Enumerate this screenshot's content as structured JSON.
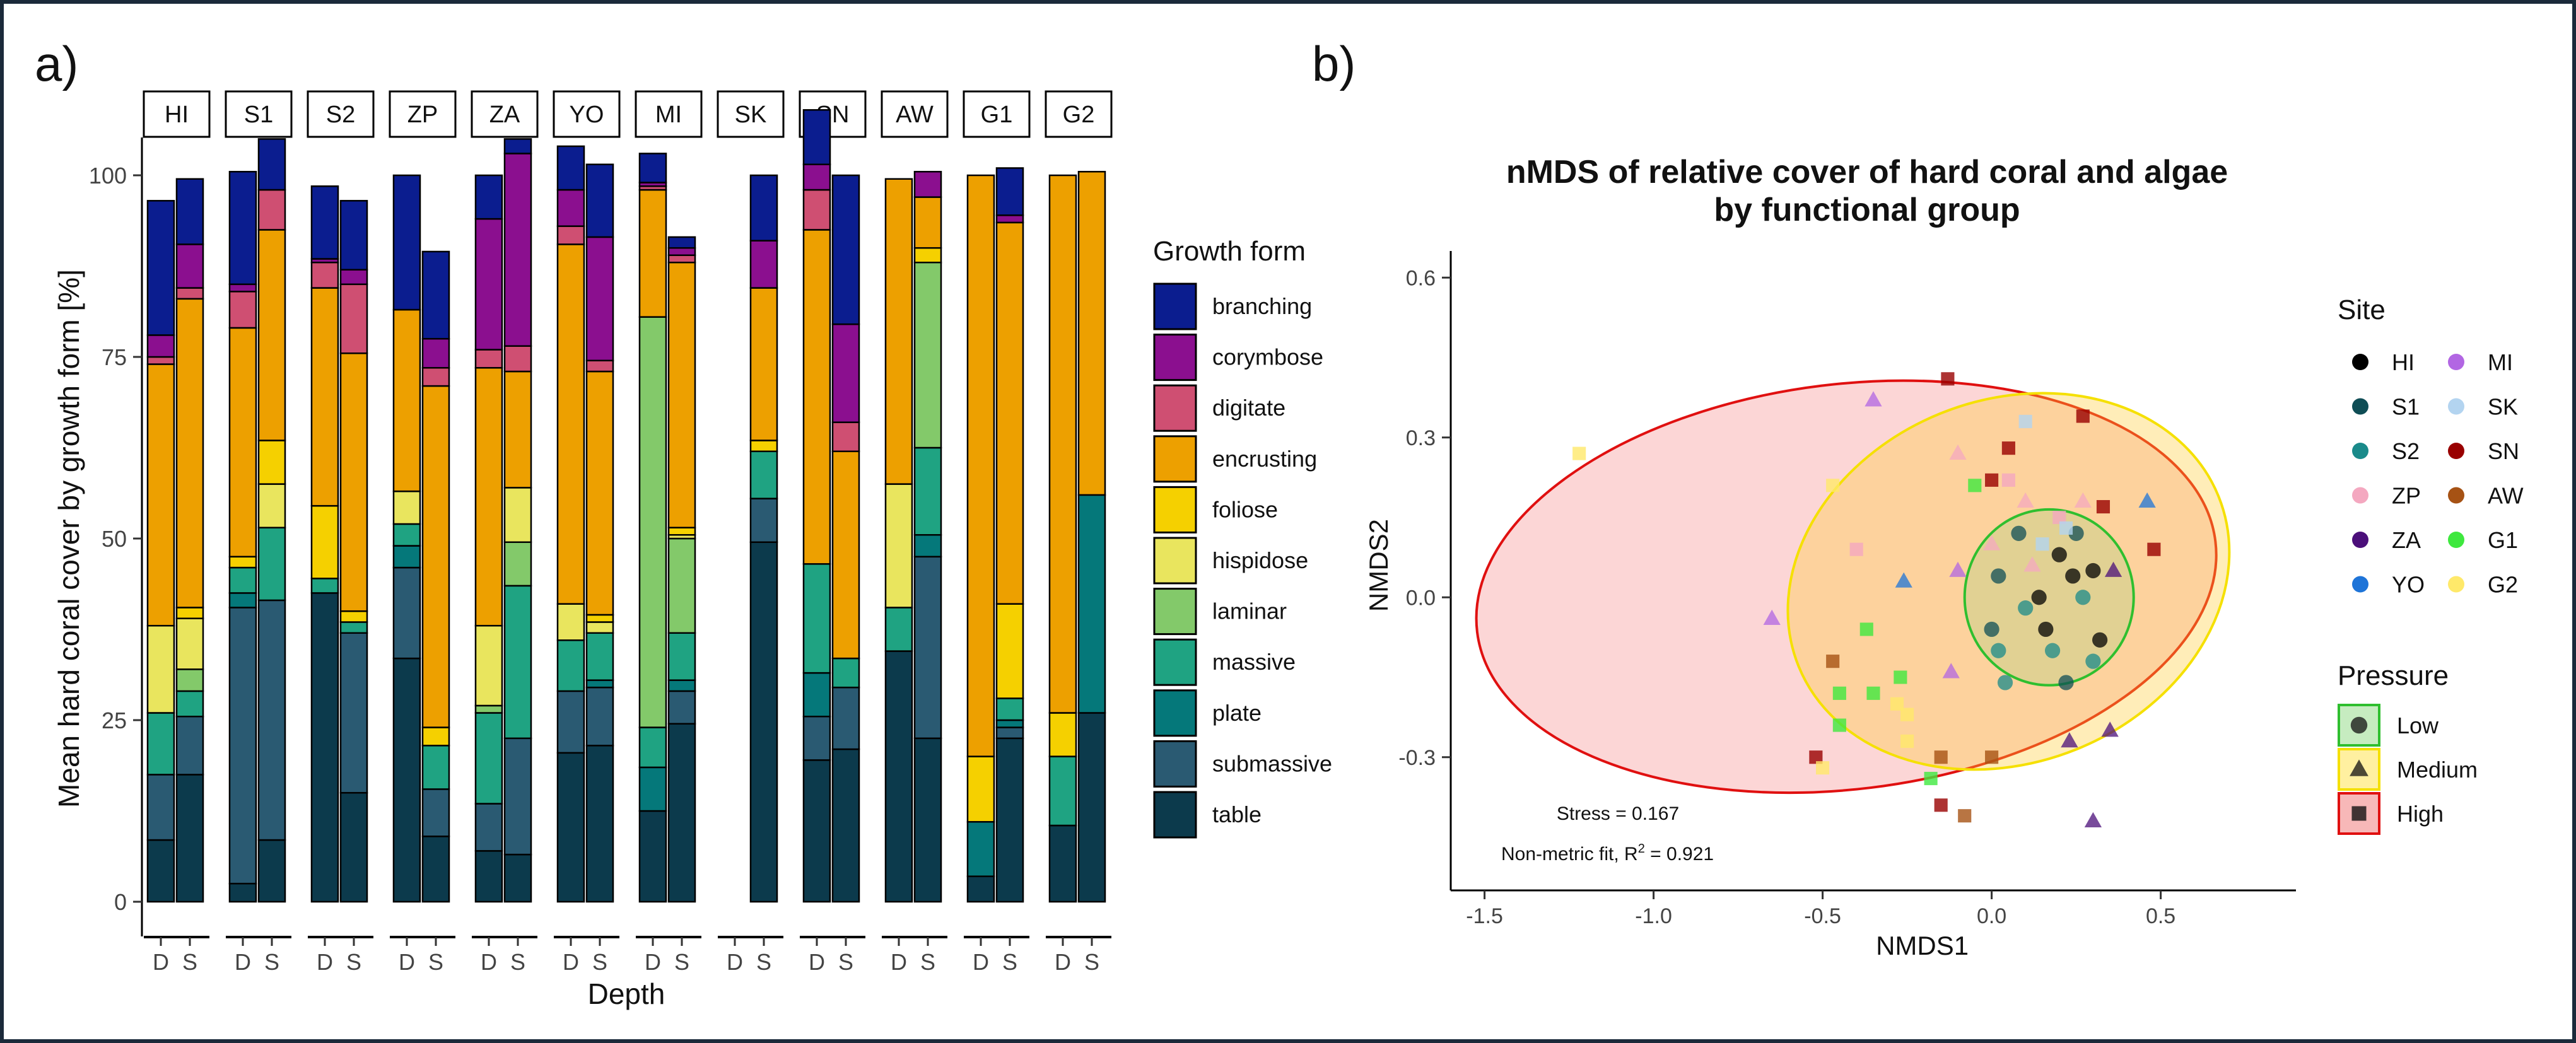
{
  "panel_labels": {
    "a": "a)",
    "b": "b)"
  },
  "colors": {
    "growth_forms": {
      "branching": "#0b1d8f",
      "corymbose": "#8b0f8f",
      "digitate": "#cf4f72",
      "encrusting": "#eda000",
      "foliose": "#f5d000",
      "hispidose": "#e9e55e",
      "laminar": "#83c96a",
      "massive": "#1fa382",
      "plate": "#05787a",
      "submassive": "#2a5a72",
      "table": "#0c3a4c"
    },
    "sites": {
      "HI": "#000000",
      "S1": "#0f4d55",
      "S2": "#1a8a8a",
      "ZP": "#f4a8c0",
      "ZA": "#4b0f7a",
      "YO": "#1e74d8",
      "MI": "#b266e3",
      "SK": "#b3d4f0",
      "SN": "#990000",
      "AW": "#a65214",
      "G1": "#3ee83e",
      "G2": "#ffe96a"
    },
    "pressure_low": "#2fbf2f",
    "pressure_medium": "#f5e000",
    "pressure_high": "#e01010"
  },
  "chart_data": [
    {
      "type": "bar",
      "stacked": true,
      "facets": [
        "HI",
        "S1",
        "S2",
        "ZP",
        "ZA",
        "YO",
        "MI",
        "SK",
        "SN",
        "AW",
        "G1",
        "G2"
      ],
      "depth_levels": [
        "D",
        "S"
      ],
      "xlabel": "Depth",
      "ylabel": "Mean hard coral cover by growth form [%]",
      "ylim": [
        0,
        100
      ],
      "yticks": [
        0,
        25,
        50,
        75,
        100
      ],
      "legend_title": "Growth form",
      "legend_placement": "right",
      "stack_order": [
        "table",
        "submassive",
        "plate",
        "massive",
        "laminar",
        "hispidose",
        "foliose",
        "encrusting",
        "digitate",
        "corymbose",
        "branching"
      ],
      "series": [
        {
          "name": "branching",
          "values": [
            18.5,
            9.0,
            15.5,
            7.0,
            10.0,
            9.5,
            18.5,
            12.0,
            6.0,
            2.0,
            6.0,
            10.0,
            4.0,
            1.5,
            null,
            9.0,
            7.5,
            20.5,
            0.0,
            0.0,
            0.0,
            6.5,
            0.0,
            0.0
          ]
        },
        {
          "name": "corymbose",
          "values": [
            3.0,
            6.0,
            1.0,
            0.0,
            0.5,
            2.0,
            0.0,
            4.0,
            18.0,
            26.5,
            5.0,
            17.0,
            0.5,
            1.0,
            null,
            6.5,
            3.5,
            13.5,
            0.0,
            3.5,
            0.0,
            1.0,
            0.0,
            0.0
          ]
        },
        {
          "name": "digitate",
          "values": [
            1.0,
            1.5,
            5.0,
            5.5,
            3.5,
            9.5,
            0.0,
            2.5,
            2.5,
            3.5,
            2.5,
            1.5,
            0.5,
            1.0,
            null,
            0.0,
            5.5,
            4.0,
            0.0,
            0.0,
            0.0,
            0.0,
            0.0,
            0.0
          ]
        },
        {
          "name": "encrusting",
          "values": [
            36.0,
            42.5,
            31.5,
            29.0,
            30.0,
            35.5,
            25.0,
            47.0,
            35.5,
            16.0,
            49.5,
            33.5,
            17.5,
            36.5,
            null,
            21.0,
            46.0,
            28.5,
            42.0,
            7.0,
            80.0,
            52.5,
            74.0,
            44.5
          ]
        },
        {
          "name": "foliose",
          "values": [
            0.0,
            1.5,
            1.5,
            6.0,
            10.0,
            1.5,
            0.0,
            2.5,
            0.0,
            0.0,
            0.0,
            1.0,
            0.0,
            1.0,
            null,
            1.5,
            0.0,
            0.0,
            0.0,
            2.0,
            9.0,
            13.0,
            6.0,
            0.0
          ]
        },
        {
          "name": "hispidose",
          "values": [
            12.0,
            7.0,
            0.0,
            6.0,
            0.0,
            0.0,
            4.5,
            0.0,
            11.0,
            7.5,
            5.0,
            1.5,
            0.0,
            0.5,
            null,
            0.0,
            0.0,
            0.0,
            17.0,
            0.0,
            0.0,
            0.0,
            0.0,
            0.0
          ]
        },
        {
          "name": "laminar",
          "values": [
            0.0,
            3.0,
            0.0,
            0.0,
            0.0,
            0.0,
            0.0,
            0.0,
            1.0,
            6.0,
            0.0,
            0.0,
            56.5,
            13.0,
            null,
            0.0,
            0.0,
            0.0,
            0.0,
            25.5,
            0.0,
            0.0,
            0.0,
            0.0
          ]
        },
        {
          "name": "massive",
          "values": [
            8.5,
            3.5,
            3.5,
            10.0,
            2.0,
            1.5,
            3.0,
            6.0,
            12.5,
            21.0,
            7.0,
            6.5,
            5.5,
            6.5,
            null,
            6.5,
            15.0,
            4.0,
            6.0,
            12.0,
            0.0,
            3.0,
            9.5,
            0.0
          ]
        },
        {
          "name": "plate",
          "values": [
            0.0,
            0.0,
            2.0,
            0.0,
            0.0,
            0.0,
            3.0,
            0.0,
            0.0,
            0.0,
            0.0,
            1.0,
            6.0,
            1.5,
            null,
            0.0,
            6.0,
            0.0,
            0.0,
            3.0,
            7.5,
            1.0,
            0.0,
            30.0
          ]
        },
        {
          "name": "submassive",
          "values": [
            9.0,
            8.0,
            38.0,
            33.0,
            0.0,
            22.0,
            12.5,
            6.5,
            6.5,
            16.0,
            8.5,
            8.0,
            0.0,
            4.5,
            null,
            6.0,
            6.0,
            8.5,
            0.0,
            25.0,
            0.0,
            1.5,
            0.0,
            0.0
          ]
        },
        {
          "name": "table",
          "values": [
            8.5,
            17.5,
            2.5,
            8.5,
            42.5,
            15.0,
            33.5,
            9.0,
            7.0,
            6.5,
            20.5,
            21.5,
            12.5,
            24.5,
            null,
            49.5,
            19.5,
            21.0,
            34.5,
            22.5,
            3.5,
            22.5,
            10.5,
            26.0
          ]
        }
      ],
      "categories_note_order": "bars listed per site as D then S"
    },
    {
      "type": "scatter",
      "title": [
        "nMDS of relative cover of hard coral and algae",
        "by functional group"
      ],
      "xlabel": "NMDS1",
      "ylabel": "NMDS2",
      "xlim": [
        -1.6,
        0.9
      ],
      "ylim": [
        -0.55,
        0.65
      ],
      "xticks": [
        -1.5,
        -1.0,
        -0.5,
        0.0,
        0.5
      ],
      "xtick_labels": [
        "-1.5",
        "-1.0",
        "-0.5",
        "0.0",
        "0.5"
      ],
      "yticks": [
        -0.3,
        0.0,
        0.3,
        0.6
      ],
      "ytick_labels": [
        "-0.3",
        "0.0",
        "0.3",
        "0.6"
      ],
      "annotations": {
        "stress": "Stress = 0.167",
        "fit_prefix": "Non-metric fit, R",
        "fit_sup": "2",
        "fit_suffix": " = 0.921"
      },
      "legend_site_title": "Site",
      "legend_sites": [
        "HI",
        "S1",
        "S2",
        "ZP",
        "ZA",
        "YO",
        "MI",
        "SK",
        "SN",
        "AW",
        "G1",
        "G2"
      ],
      "legend_pressure_title": "Pressure",
      "legend_pressure": [
        "Low",
        "Medium",
        "High"
      ],
      "ellipses": [
        {
          "group": "High",
          "cx": -0.43,
          "cy": 0.02,
          "rx": 1.1,
          "ry": 0.38,
          "angle_deg": -7
        },
        {
          "group": "Medium",
          "cx": 0.05,
          "cy": 0.03,
          "rx": 0.67,
          "ry": 0.34,
          "angle_deg": -22
        },
        {
          "group": "Low",
          "cx": 0.17,
          "cy": 0.0,
          "rx": 0.25,
          "ry": 0.165,
          "angle_deg": 0
        }
      ],
      "points": [
        {
          "site": "HI",
          "group": "Low",
          "x": 0.2,
          "y": 0.08
        },
        {
          "site": "HI",
          "group": "Low",
          "x": 0.3,
          "y": 0.05
        },
        {
          "site": "HI",
          "group": "Low",
          "x": 0.24,
          "y": 0.04
        },
        {
          "site": "HI",
          "group": "Low",
          "x": 0.14,
          "y": 0.0
        },
        {
          "site": "HI",
          "group": "Low",
          "x": 0.32,
          "y": -0.08
        },
        {
          "site": "HI",
          "group": "Low",
          "x": 0.16,
          "y": -0.06
        },
        {
          "site": "S1",
          "group": "Low",
          "x": 0.02,
          "y": 0.04
        },
        {
          "site": "S1",
          "group": "Low",
          "x": 0.22,
          "y": -0.16
        },
        {
          "site": "S1",
          "group": "Low",
          "x": 0.08,
          "y": 0.12
        },
        {
          "site": "S1",
          "group": "Low",
          "x": 0.25,
          "y": 0.12
        },
        {
          "site": "S1",
          "group": "Low",
          "x": 0.0,
          "y": -0.06
        },
        {
          "site": "S2",
          "group": "Low",
          "x": 0.1,
          "y": -0.02
        },
        {
          "site": "S2",
          "group": "Low",
          "x": 0.04,
          "y": -0.16
        },
        {
          "site": "S2",
          "group": "Low",
          "x": 0.18,
          "y": -0.1
        },
        {
          "site": "S2",
          "group": "Low",
          "x": 0.3,
          "y": -0.12
        },
        {
          "site": "S2",
          "group": "Low",
          "x": 0.02,
          "y": -0.1
        },
        {
          "site": "S2",
          "group": "Low",
          "x": 0.27,
          "y": 0.0
        },
        {
          "site": "ZP",
          "group": "Medium",
          "x": -0.1,
          "y": 0.27
        },
        {
          "site": "ZP",
          "group": "Medium",
          "x": 0.0,
          "y": 0.1
        },
        {
          "site": "ZP",
          "group": "Medium",
          "x": 0.12,
          "y": 0.06
        },
        {
          "site": "ZP",
          "group": "Medium",
          "x": 0.27,
          "y": 0.18
        },
        {
          "site": "ZP",
          "group": "Medium",
          "x": 0.1,
          "y": 0.18
        },
        {
          "site": "ZP",
          "group": "High",
          "x": -0.4,
          "y": 0.09
        },
        {
          "site": "ZP",
          "group": "High",
          "x": 0.05,
          "y": 0.22
        },
        {
          "site": "ZP",
          "group": "High",
          "x": 0.2,
          "y": 0.15
        },
        {
          "site": "ZA",
          "group": "Medium",
          "x": 0.3,
          "y": -0.42
        },
        {
          "site": "ZA",
          "group": "Medium",
          "x": 0.36,
          "y": 0.05
        },
        {
          "site": "ZA",
          "group": "Medium",
          "x": 0.23,
          "y": -0.27
        },
        {
          "site": "ZA",
          "group": "Medium",
          "x": 0.35,
          "y": -0.25
        },
        {
          "site": "YO",
          "group": "Medium",
          "x": 0.46,
          "y": 0.18
        },
        {
          "site": "YO",
          "group": "Medium",
          "x": -0.26,
          "y": 0.03
        },
        {
          "site": "MI",
          "group": "Medium",
          "x": -0.35,
          "y": 0.37
        },
        {
          "site": "MI",
          "group": "Medium",
          "x": -0.65,
          "y": -0.04
        },
        {
          "site": "MI",
          "group": "Medium",
          "x": -0.12,
          "y": -0.14
        },
        {
          "site": "MI",
          "group": "Medium",
          "x": -0.1,
          "y": 0.05
        },
        {
          "site": "SK",
          "group": "High",
          "x": 0.1,
          "y": 0.33
        },
        {
          "site": "SK",
          "group": "High",
          "x": 0.22,
          "y": 0.13
        },
        {
          "site": "SK",
          "group": "High",
          "x": 0.15,
          "y": 0.1
        },
        {
          "site": "SN",
          "group": "High",
          "x": -0.13,
          "y": 0.41
        },
        {
          "site": "SN",
          "group": "High",
          "x": -0.52,
          "y": -0.3
        },
        {
          "site": "SN",
          "group": "High",
          "x": -0.15,
          "y": -0.39
        },
        {
          "site": "SN",
          "group": "High",
          "x": 0.27,
          "y": 0.34
        },
        {
          "site": "SN",
          "group": "High",
          "x": 0.33,
          "y": 0.17
        },
        {
          "site": "SN",
          "group": "High",
          "x": 0.0,
          "y": 0.22
        },
        {
          "site": "SN",
          "group": "High",
          "x": 0.05,
          "y": 0.28
        },
        {
          "site": "SN",
          "group": "High",
          "x": 0.48,
          "y": 0.09
        },
        {
          "site": "AW",
          "group": "High",
          "x": -0.47,
          "y": -0.12
        },
        {
          "site": "AW",
          "group": "High",
          "x": -0.08,
          "y": -0.41
        },
        {
          "site": "AW",
          "group": "High",
          "x": 0.0,
          "y": -0.3
        },
        {
          "site": "AW",
          "group": "High",
          "x": -0.15,
          "y": -0.3
        },
        {
          "site": "G1",
          "group": "High",
          "x": -0.05,
          "y": 0.21
        },
        {
          "site": "G1",
          "group": "High",
          "x": -0.37,
          "y": -0.06
        },
        {
          "site": "G1",
          "group": "High",
          "x": -0.45,
          "y": -0.24
        },
        {
          "site": "G1",
          "group": "High",
          "x": -0.35,
          "y": -0.18
        },
        {
          "site": "G1",
          "group": "High",
          "x": -0.45,
          "y": -0.18
        },
        {
          "site": "G1",
          "group": "High",
          "x": -0.18,
          "y": -0.34
        },
        {
          "site": "G1",
          "group": "High",
          "x": -0.27,
          "y": -0.15
        },
        {
          "site": "G2",
          "group": "High",
          "x": -1.22,
          "y": 0.27
        },
        {
          "site": "G2",
          "group": "High",
          "x": -0.47,
          "y": 0.21
        },
        {
          "site": "G2",
          "group": "High",
          "x": -0.25,
          "y": -0.27
        },
        {
          "site": "G2",
          "group": "High",
          "x": -0.28,
          "y": -0.2
        },
        {
          "site": "G2",
          "group": "High",
          "x": -0.5,
          "y": -0.32
        },
        {
          "site": "G2",
          "group": "High",
          "x": -0.25,
          "y": -0.22
        }
      ]
    }
  ]
}
